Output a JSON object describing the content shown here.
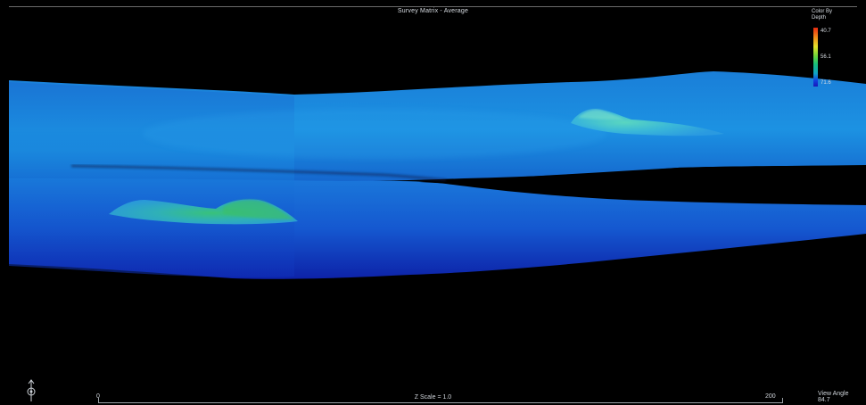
{
  "window": {
    "title": "Survey Matrix - Average"
  },
  "legend": {
    "title_line1": "Color By",
    "title_line2": "Depth",
    "max_label": "40.7",
    "mid_label": "56.1",
    "min_label": "71.6"
  },
  "scale_bar": {
    "start_label": "0",
    "end_label": "200",
    "z_scale_label": "Z Scale = 1.0"
  },
  "view": {
    "angle_label": "View Angle",
    "angle_value": "84.7"
  },
  "icons": {
    "compass": "north-arrow-icon"
  },
  "colors": {
    "seafloor_deep": "#1236c8",
    "seafloor_mid": "#1a7fd6",
    "mound_top": "#2fc07a",
    "background": "#000000"
  }
}
